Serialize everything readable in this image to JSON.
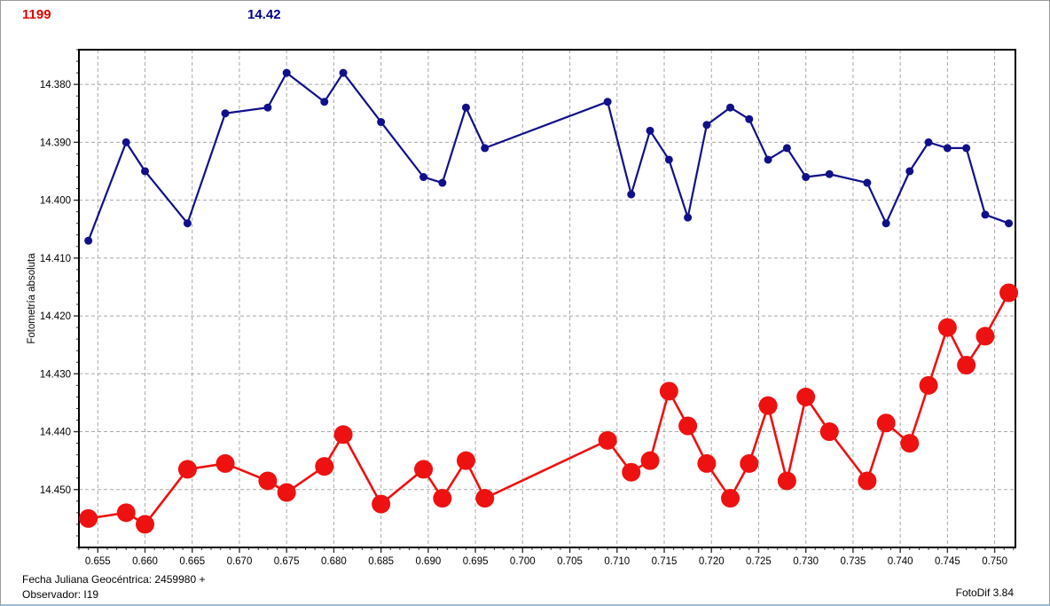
{
  "header": {
    "object_number": "1199",
    "magnitude_label": "14.42"
  },
  "footer": {
    "julian_date_line": "Fecha Juliana Geocéntrica: 2459980 +",
    "observer_line": "Observador: I19",
    "app_version": "FotoDif 3.84"
  },
  "chart_data": {
    "type": "line",
    "title": "",
    "xlabel": "",
    "ylabel": "Fotometría absoluta",
    "grid": "dashed",
    "legend": "none",
    "y_axis_inverted": true,
    "xlim": [
      0.653,
      0.7522
    ],
    "ylim": [
      14.374,
      14.46
    ],
    "x_tick_labels": [
      "0.655",
      "0.660",
      "0.665",
      "0.670",
      "0.675",
      "0.680",
      "0.685",
      "0.690",
      "0.695",
      "0.700",
      "0.705",
      "0.710",
      "0.715",
      "0.720",
      "0.725",
      "0.730",
      "0.735",
      "0.740",
      "0.745",
      "0.750"
    ],
    "y_tick_labels": [
      "14.380",
      "14.390",
      "14.400",
      "14.410",
      "14.420",
      "14.430",
      "14.440",
      "14.450"
    ],
    "x_minor_step": 0.001,
    "y_minor_step": 0.002,
    "x": [
      0.654,
      0.658,
      0.66,
      0.6645,
      0.6685,
      0.673,
      0.675,
      0.679,
      0.681,
      0.685,
      0.6895,
      0.6915,
      0.694,
      0.696,
      0.709,
      0.7115,
      0.7135,
      0.7155,
      0.7175,
      0.7195,
      0.722,
      0.724,
      0.726,
      0.728,
      0.73,
      0.7325,
      0.7365,
      0.7385,
      0.741,
      0.743,
      0.745,
      0.747,
      0.749,
      0.7515
    ],
    "series": [
      {
        "name": "blue_series",
        "color": "#10108a",
        "line_width": 2.2,
        "marker_radius": 4.5,
        "values": [
          14.407,
          14.39,
          14.395,
          14.404,
          14.385,
          14.384,
          14.378,
          14.383,
          14.378,
          14.3865,
          14.396,
          14.397,
          14.384,
          14.391,
          14.383,
          14.399,
          14.388,
          14.393,
          14.403,
          14.387,
          14.384,
          14.386,
          14.393,
          14.391,
          14.396,
          14.3955,
          14.397,
          14.404,
          14.395,
          14.39,
          14.391,
          14.391,
          14.4025,
          14.404
        ]
      },
      {
        "name": "red_series",
        "color": "#ee1111",
        "line_width": 2.6,
        "marker_radius": 10.5,
        "values": [
          14.455,
          14.454,
          14.456,
          14.4465,
          14.4455,
          14.4485,
          14.4505,
          14.446,
          14.4405,
          14.4525,
          14.4465,
          14.4515,
          14.445,
          14.4515,
          14.4415,
          14.447,
          14.445,
          14.433,
          14.439,
          14.4455,
          14.4515,
          14.4455,
          14.4355,
          14.4485,
          14.434,
          14.44,
          14.4485,
          14.4385,
          14.442,
          14.432,
          14.422,
          14.4285,
          14.4235,
          14.416
        ]
      }
    ],
    "colors": {
      "grid": "#a8a8a8",
      "plot_border": "#000000",
      "tick": "#333333",
      "tick_label": "#000000"
    }
  }
}
